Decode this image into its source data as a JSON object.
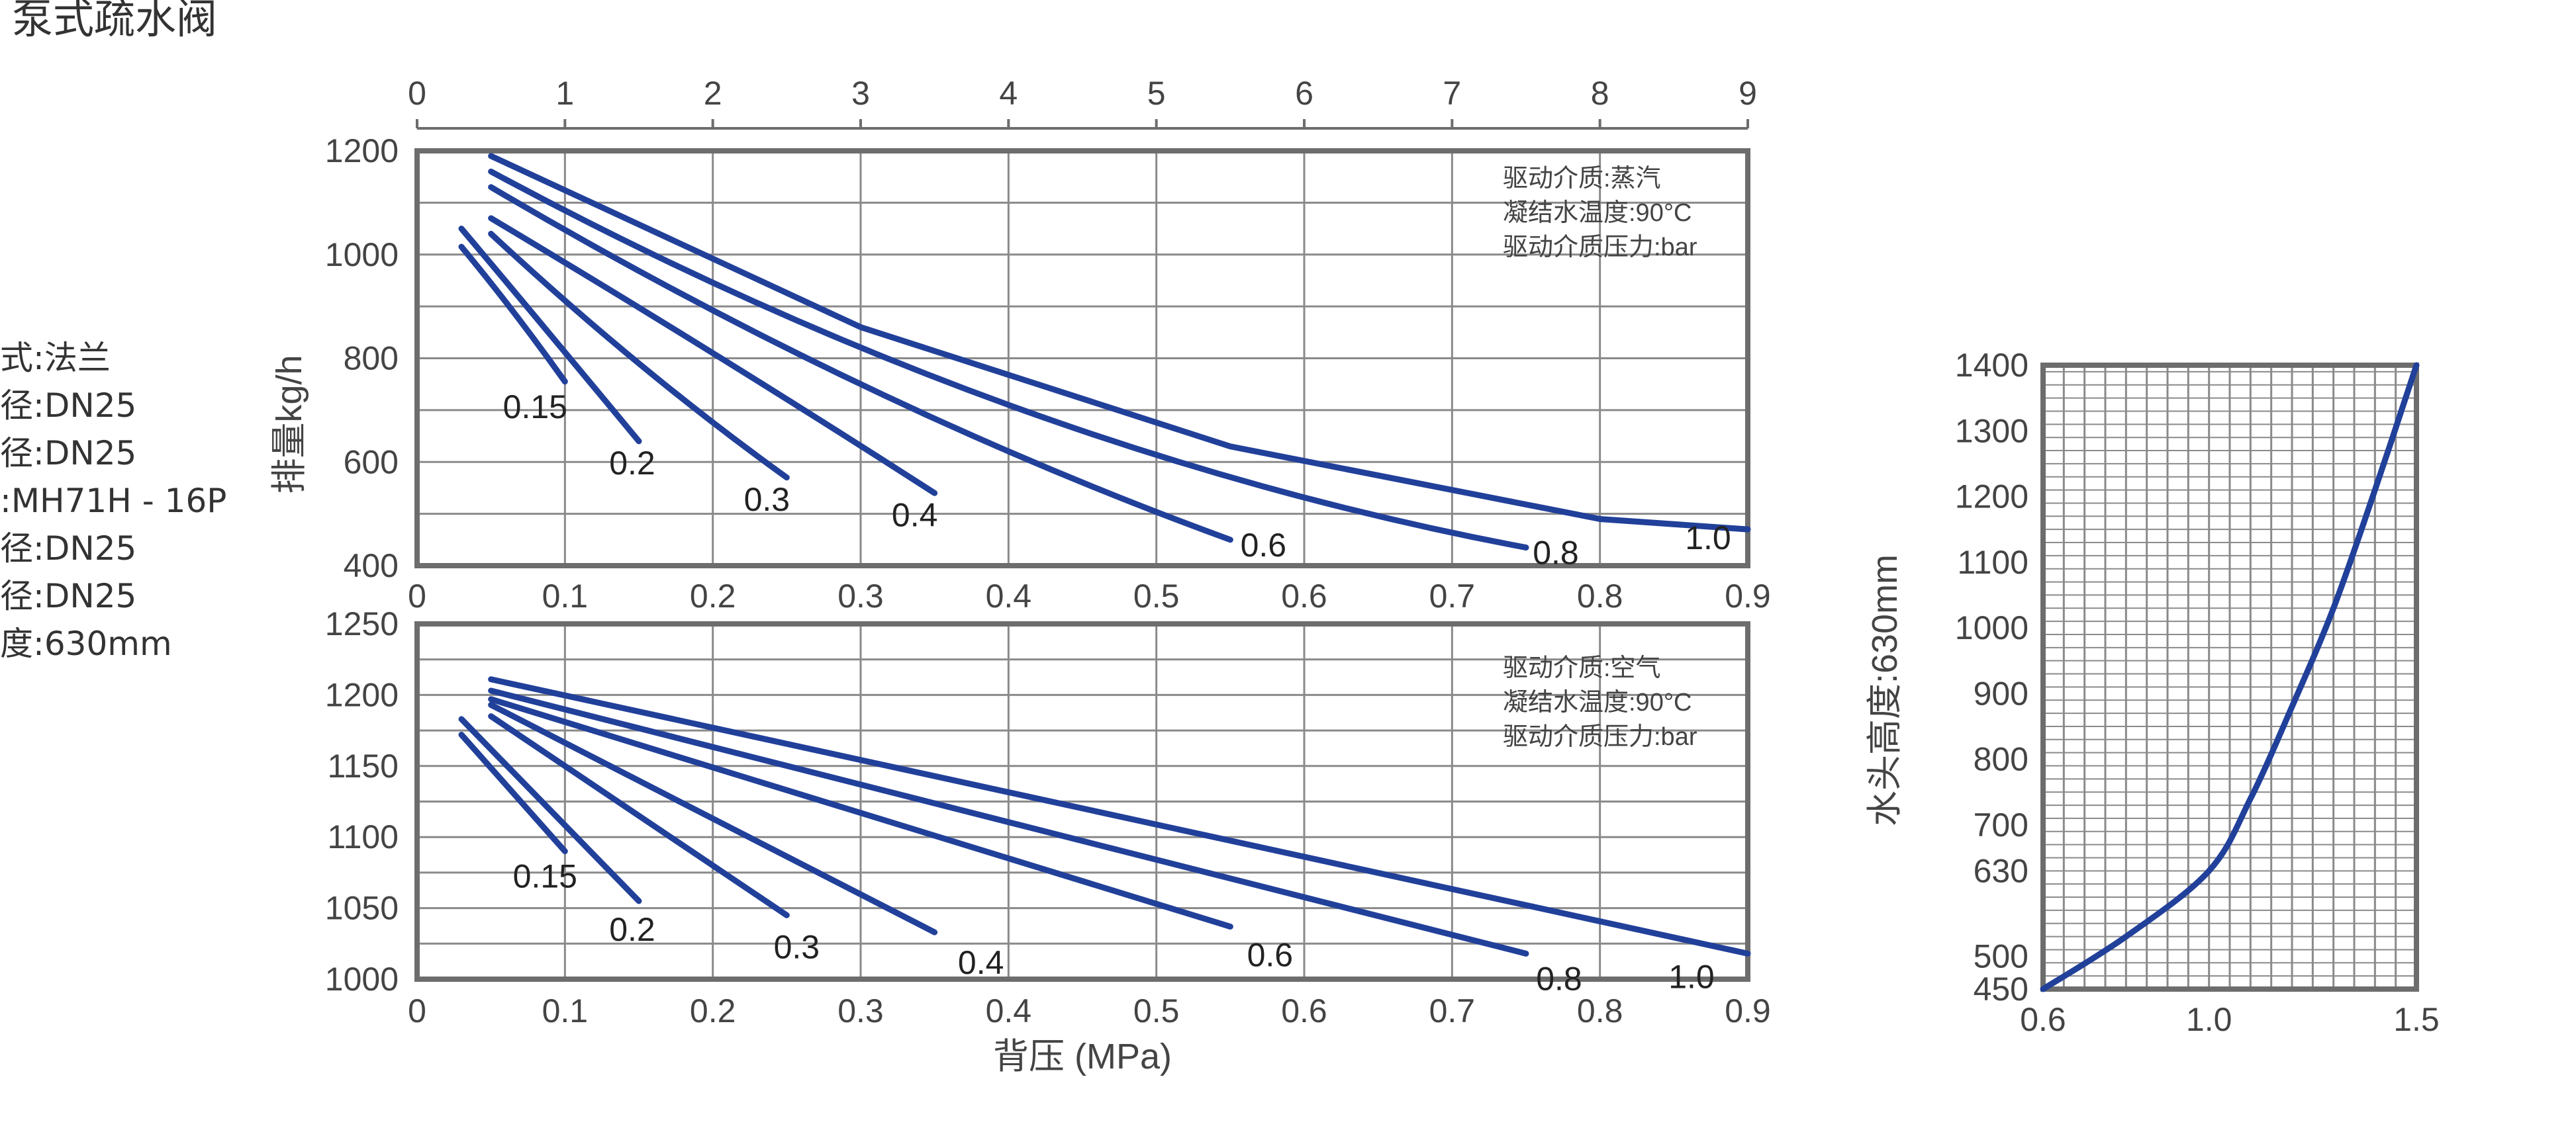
{
  "title": "泵式疏水阀",
  "specs": [
    "式:法兰",
    "径:DN25",
    "径:DN25",
    ":MH71H - 16P",
    "径:DN25",
    "径:DN25",
    "度:630mm"
  ],
  "colors": {
    "curve": "#21409a",
    "frame": "#6d6d6d",
    "grid": "#8a8a8a",
    "text": "#444444"
  },
  "chart_data": [
    {
      "type": "line",
      "ylabel": "排量kg/h",
      "xlim": [
        0,
        0.9
      ],
      "ylim": [
        400,
        1200
      ],
      "x_ticks": [
        "0",
        "0.1",
        "0.2",
        "0.3",
        "0.4",
        "0.5",
        "0.6",
        "0.7",
        "0.8",
        "0.9"
      ],
      "y_ticks": [
        "1200",
        "1000",
        "800",
        "600",
        "400"
      ],
      "top_axis": {
        "range": [
          0,
          9
        ],
        "ticks": [
          "0",
          "1",
          "2",
          "3",
          "4",
          "5",
          "6",
          "7",
          "8",
          "9"
        ]
      },
      "legend_lines": [
        "驱动介质:蒸汽",
        "凝结水温度:90°C",
        "驱动介质压力:bar"
      ],
      "series": [
        {
          "name": "0.15",
          "x": [
            0.03,
            0.065,
            0.1
          ],
          "y": [
            1015,
            890,
            755
          ]
        },
        {
          "name": "0.2",
          "x": [
            0.03,
            0.08,
            0.15
          ],
          "y": [
            1050,
            880,
            640
          ]
        },
        {
          "name": "0.3",
          "x": [
            0.05,
            0.15,
            0.25
          ],
          "y": [
            1040,
            790,
            570
          ]
        },
        {
          "name": "0.4",
          "x": [
            0.05,
            0.2,
            0.35
          ],
          "y": [
            1070,
            810,
            540
          ]
        },
        {
          "name": "0.6",
          "x": [
            0.05,
            0.3,
            0.55
          ],
          "y": [
            1130,
            750,
            450
          ]
        },
        {
          "name": "0.8",
          "x": [
            0.05,
            0.4,
            0.75
          ],
          "y": [
            1160,
            710,
            435
          ]
        },
        {
          "name": "1.0",
          "x": [
            0.05,
            0.3,
            0.55,
            0.8,
            0.9
          ],
          "y": [
            1190,
            860,
            630,
            490,
            470
          ]
        }
      ]
    },
    {
      "type": "line",
      "xlabel": "背压 (MPa)",
      "xlim": [
        0,
        0.9
      ],
      "ylim": [
        1000,
        1250
      ],
      "x_ticks": [
        "0",
        "0.1",
        "0.2",
        "0.3",
        "0.4",
        "0.5",
        "0.6",
        "0.7",
        "0.8",
        "0.9"
      ],
      "y_ticks": [
        "1250",
        "1200",
        "1150",
        "1100",
        "1050",
        "1000"
      ],
      "legend_lines": [
        "驱动介质:空气",
        "凝结水温度:90°C",
        "驱动介质压力:bar"
      ],
      "series": [
        {
          "name": "0.15",
          "x": [
            0.03,
            0.1
          ],
          "y": [
            1172,
            1090
          ]
        },
        {
          "name": "0.2",
          "x": [
            0.03,
            0.15
          ],
          "y": [
            1183,
            1055
          ]
        },
        {
          "name": "0.3",
          "x": [
            0.05,
            0.25
          ],
          "y": [
            1185,
            1045
          ]
        },
        {
          "name": "0.4",
          "x": [
            0.05,
            0.35
          ],
          "y": [
            1193,
            1033
          ]
        },
        {
          "name": "0.6",
          "x": [
            0.05,
            0.55
          ],
          "y": [
            1197,
            1037
          ]
        },
        {
          "name": "0.8",
          "x": [
            0.05,
            0.75
          ],
          "y": [
            1203,
            1018
          ]
        },
        {
          "name": "1.0",
          "x": [
            0.05,
            0.9
          ],
          "y": [
            1211,
            1018
          ]
        }
      ]
    },
    {
      "type": "line",
      "ylabel": "水头高度:630mm",
      "xlim": [
        0.6,
        1.5
      ],
      "ylim": [
        450,
        1400
      ],
      "x_ticks": [
        "0.6",
        "1.0",
        "1.5"
      ],
      "y_ticks": [
        "1400",
        "1300",
        "1200",
        "1100",
        "1000",
        "900",
        "800",
        "700",
        "630",
        "500",
        "450"
      ],
      "series": [
        {
          "x": [
            0.6,
            0.8,
            1.0,
            1.1,
            1.2,
            1.3,
            1.4,
            1.5
          ],
          "y": [
            450,
            530,
            630,
            740,
            880,
            1030,
            1210,
            1400
          ]
        }
      ]
    }
  ]
}
